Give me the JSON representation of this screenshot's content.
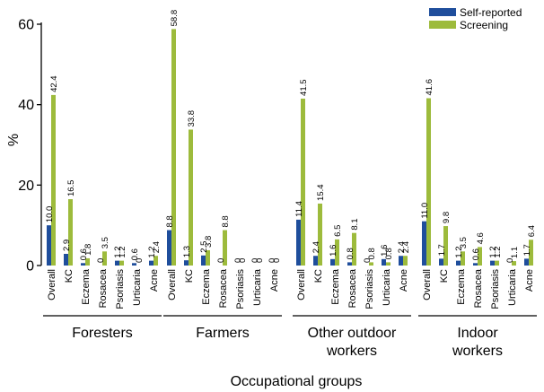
{
  "chart_data": {
    "type": "bar",
    "xlabel": "Occupational groups",
    "ylabel": "%",
    "ylim": [
      0,
      60
    ],
    "yticks": [
      0,
      20,
      40,
      60
    ],
    "legend_position": "top-right",
    "series_colors": {
      "self": "#1f4e9c",
      "screen": "#9dbb3c"
    },
    "series": [
      {
        "name": "Self-reported",
        "key": "self"
      },
      {
        "name": "Screening",
        "key": "screen"
      }
    ],
    "groups": [
      {
        "label_lines": [
          "Foresters"
        ],
        "items": [
          {
            "cat": "Overall",
            "self": 10.0,
            "screen": 42.4,
            "self_label": "10.0",
            "screen_label": "42.4"
          },
          {
            "cat": "KC",
            "self": 2.9,
            "screen": 16.5,
            "self_label": "2.9",
            "screen_label": "16.5"
          },
          {
            "cat": "Eczema",
            "self": 0.6,
            "screen": 1.8,
            "self_label": "0.6",
            "screen_label": "1.8"
          },
          {
            "cat": "Rosacea",
            "self": 0,
            "screen": 3.5,
            "self_label": "0",
            "screen_label": "3.5"
          },
          {
            "cat": "Psoriasis",
            "self": 1.2,
            "screen": 1.2,
            "self_label": "1.2",
            "screen_label": "1.2"
          },
          {
            "cat": "Urticaria",
            "self": 0.6,
            "screen": 0,
            "self_label": "0.6",
            "screen_label": "0"
          },
          {
            "cat": "Acne",
            "self": 1.2,
            "screen": 2.4,
            "self_label": "1.2",
            "screen_label": "2.4"
          }
        ]
      },
      {
        "label_lines": [
          "Farmers"
        ],
        "items": [
          {
            "cat": "Overall",
            "self": 8.8,
            "screen": 58.8,
            "self_label": "8.8",
            "screen_label": "58.8"
          },
          {
            "cat": "KC",
            "self": 1.3,
            "screen": 33.8,
            "self_label": "1.3",
            "screen_label": "33.8"
          },
          {
            "cat": "Eczema",
            "self": 2.5,
            "screen": 3.8,
            "self_label": "2.5",
            "screen_label": "3.8"
          },
          {
            "cat": "Rosacea",
            "self": 0,
            "screen": 8.8,
            "self_label": "0",
            "screen_label": "8.8"
          },
          {
            "cat": "Psoriasis",
            "self": 0,
            "screen": 0,
            "self_label": "0",
            "screen_label": "0"
          },
          {
            "cat": "Urticaria",
            "self": 0,
            "screen": 0,
            "self_label": "0",
            "screen_label": "0"
          },
          {
            "cat": "Acne",
            "self": 0,
            "screen": 0,
            "self_label": "0",
            "screen_label": "0"
          }
        ]
      },
      {
        "label_lines": [
          "Other outdoor",
          "workers"
        ],
        "items": [
          {
            "cat": "Overall",
            "self": 11.4,
            "screen": 41.5,
            "self_label": "11.4",
            "screen_label": "41.5"
          },
          {
            "cat": "KC",
            "self": 2.4,
            "screen": 15.4,
            "self_label": "2.4",
            "screen_label": "15.4"
          },
          {
            "cat": "Eczema",
            "self": 1.6,
            "screen": 6.5,
            "self_label": "1.6",
            "screen_label": "6.5"
          },
          {
            "cat": "Rosacea",
            "self": 0.8,
            "screen": 8.1,
            "self_label": "0.8",
            "screen_label": "8.1"
          },
          {
            "cat": "Psoriasis",
            "self": 0,
            "screen": 0.8,
            "self_label": "0",
            "screen_label": "0.8"
          },
          {
            "cat": "Urticaria",
            "self": 1.6,
            "screen": 0.8,
            "self_label": "1.6",
            "screen_label": "0.8"
          },
          {
            "cat": "Acne",
            "self": 2.4,
            "screen": 2.4,
            "self_label": "2.4",
            "screen_label": "2.4"
          }
        ]
      },
      {
        "label_lines": [
          "Indoor",
          "workers"
        ],
        "items": [
          {
            "cat": "Overall",
            "self": 11.0,
            "screen": 41.6,
            "self_label": "11.0",
            "screen_label": "41.6"
          },
          {
            "cat": "KC",
            "self": 1.7,
            "screen": 9.8,
            "self_label": "1.7",
            "screen_label": "9.8"
          },
          {
            "cat": "Eczema",
            "self": 1.2,
            "screen": 3.5,
            "self_label": "1.2",
            "screen_label": "3.5"
          },
          {
            "cat": "Rosacea",
            "self": 0.6,
            "screen": 4.6,
            "self_label": "0.6",
            "screen_label": "4.6"
          },
          {
            "cat": "Psoriasis",
            "self": 1.2,
            "screen": 1.2,
            "self_label": "1.2",
            "screen_label": "1.2"
          },
          {
            "cat": "Urticaria",
            "self": 0,
            "screen": 1.1,
            "self_label": "0",
            "screen_label": "1.1"
          },
          {
            "cat": "Acne",
            "self": 1.7,
            "screen": 6.4,
            "self_label": "1.7",
            "screen_label": "6.4"
          }
        ]
      }
    ]
  }
}
